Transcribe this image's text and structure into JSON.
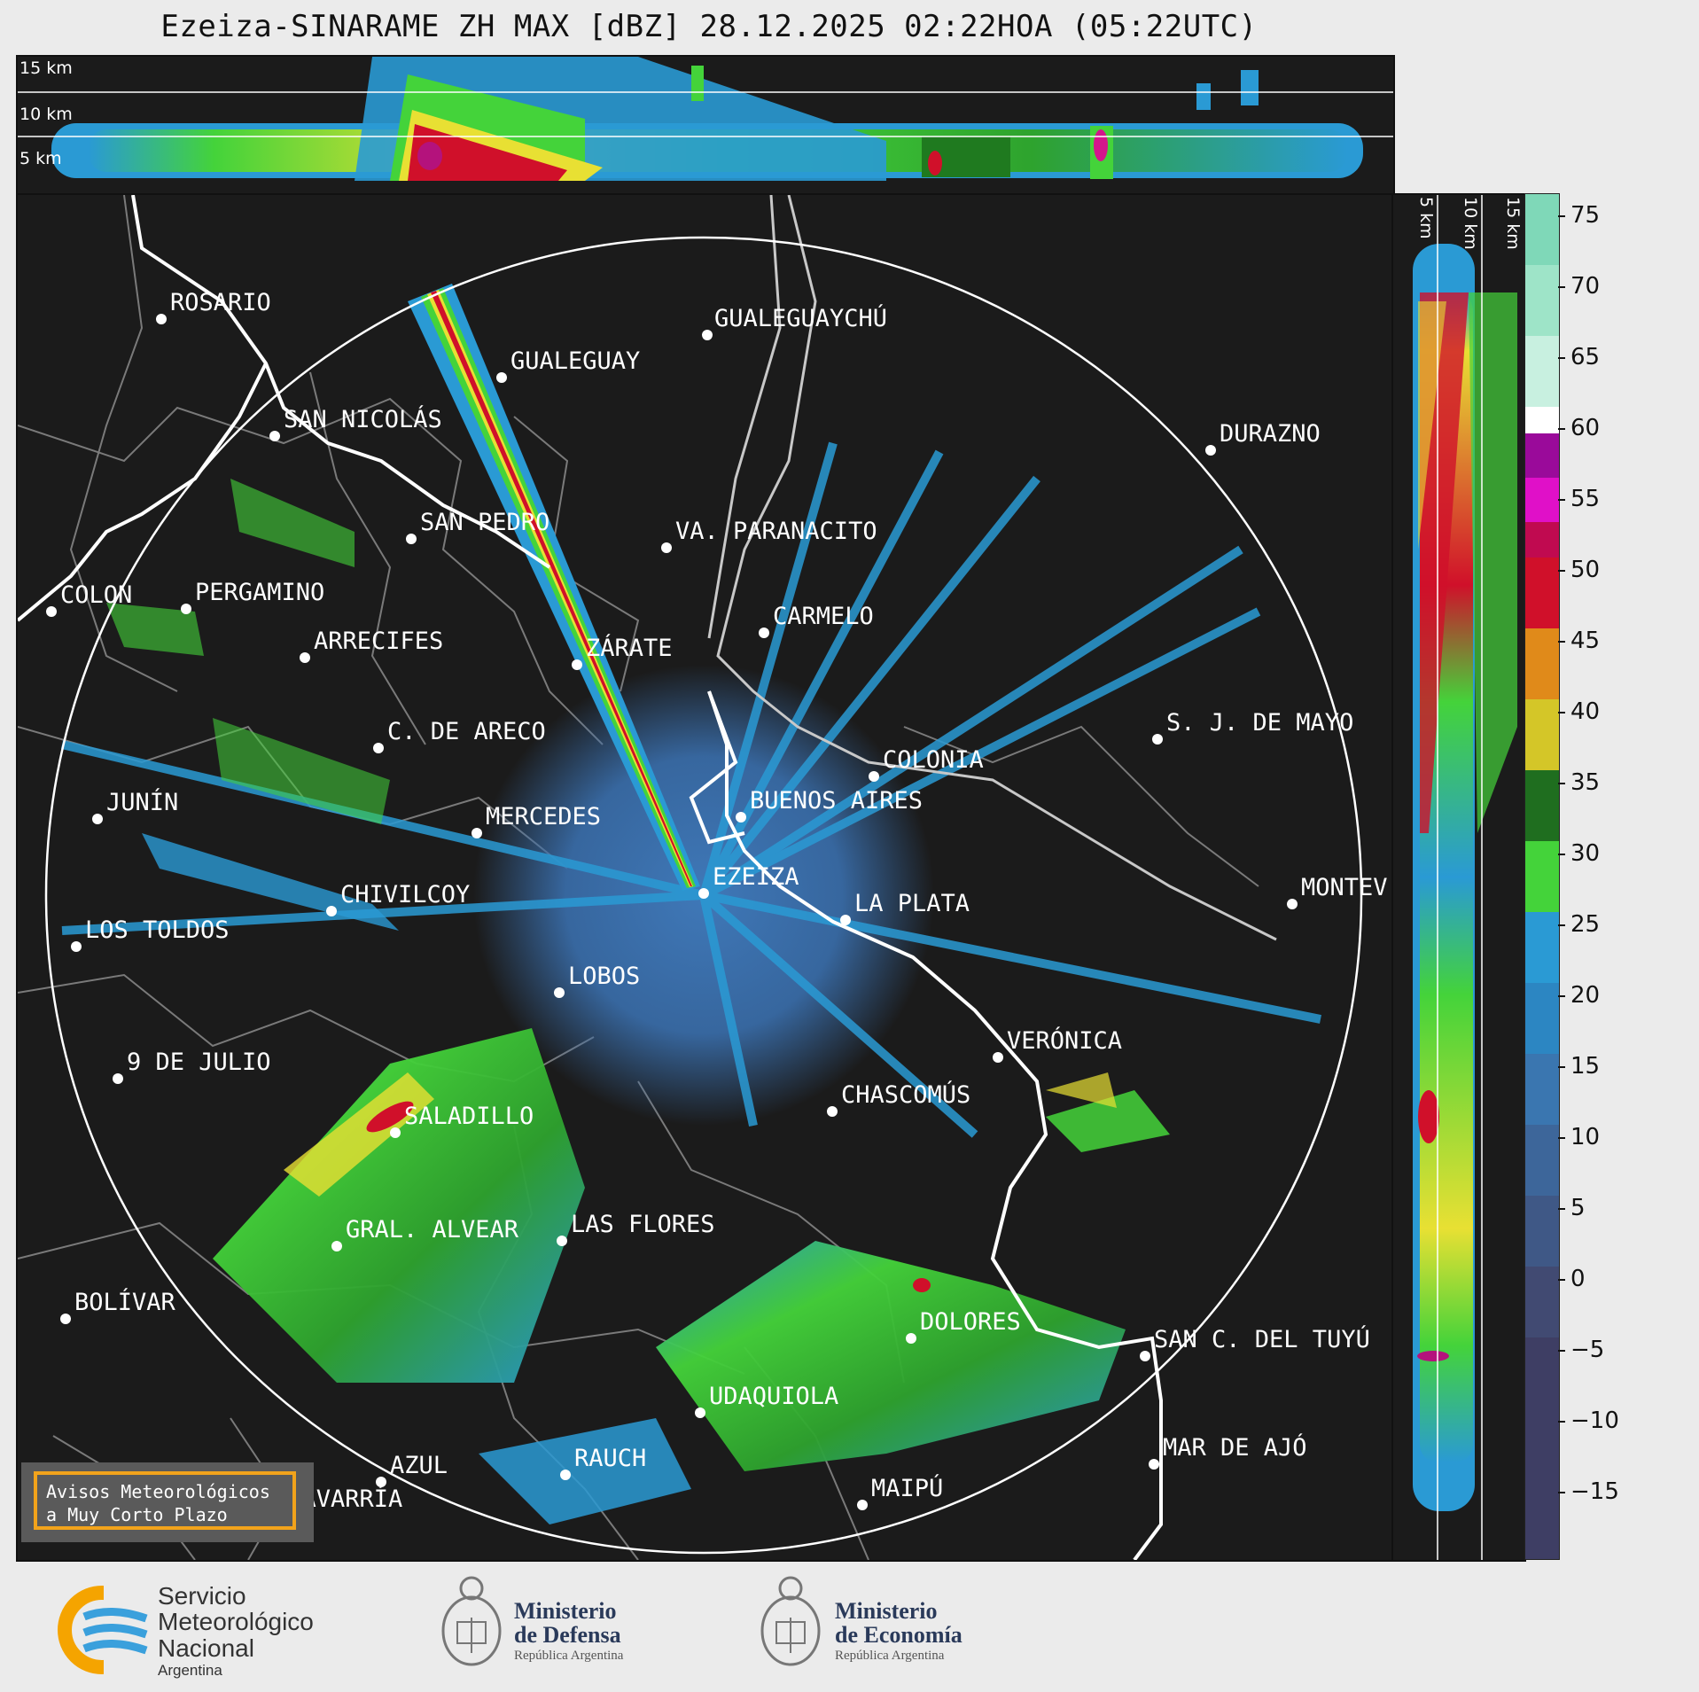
{
  "title": "Ezeiza-SINARAME ZH MAX [dBZ] 28.12.2025 02:22HOA (05:22UTC)",
  "top_panel": {
    "altitude_labels": [
      "15 km",
      "10 km",
      "5 km"
    ]
  },
  "right_panel": {
    "altitude_labels": [
      "5 km",
      "10 km",
      "15 km"
    ]
  },
  "colorbar": {
    "unit": "dBZ",
    "ticks": [
      "75",
      "70",
      "65",
      "60",
      "55",
      "50",
      "45",
      "40",
      "35",
      "30",
      "25",
      "20",
      "15",
      "10",
      "5",
      "0",
      "−5",
      "−10",
      "−15"
    ],
    "range": [
      -19,
      76
    ]
  },
  "map": {
    "center_label": "EZEIZA",
    "cities": [
      {
        "name": "ROSARIO"
      },
      {
        "name": "GUALEGUAYCHÚ"
      },
      {
        "name": "GUALEGUAY"
      },
      {
        "name": "SAN NICOLÁS"
      },
      {
        "name": "DURAZNO"
      },
      {
        "name": "SAN PEDRO"
      },
      {
        "name": "VA. PARANACITO"
      },
      {
        "name": "COLON"
      },
      {
        "name": "PERGAMINO"
      },
      {
        "name": "CARMELO"
      },
      {
        "name": "ARRECIFES"
      },
      {
        "name": "ZÁRATE"
      },
      {
        "name": "S. J. DE MAYO"
      },
      {
        "name": "C. DE ARECO"
      },
      {
        "name": "COLONIA"
      },
      {
        "name": "JUNÍN"
      },
      {
        "name": "BUENOS AIRES"
      },
      {
        "name": "MERCEDES"
      },
      {
        "name": "EZEIZA"
      },
      {
        "name": "MONTEV"
      },
      {
        "name": "CHIVILCOY"
      },
      {
        "name": "LA PLATA"
      },
      {
        "name": "LOS TOLDOS"
      },
      {
        "name": "LOBOS"
      },
      {
        "name": "VERÓNICA"
      },
      {
        "name": "9 DE JULIO"
      },
      {
        "name": "CHASCOMÚS"
      },
      {
        "name": "SALADILLO"
      },
      {
        "name": "GRAL. ALVEAR"
      },
      {
        "name": "LAS FLORES"
      },
      {
        "name": "BOLÍVAR"
      },
      {
        "name": "DOLORES"
      },
      {
        "name": "SAN C. DEL TUYÚ"
      },
      {
        "name": "UDAQUIOLA"
      },
      {
        "name": "MAR DE AJÓ"
      },
      {
        "name": "AZUL"
      },
      {
        "name": "RAUCH"
      },
      {
        "name": "OLAVARRÍA"
      },
      {
        "name": "MAIPÚ"
      }
    ]
  },
  "avisos": {
    "line1": "Avisos Meteorológicos",
    "line2": "a Muy Corto Plazo"
  },
  "footer": {
    "smn": {
      "line1": "Servicio",
      "line2": "Meteorológico",
      "line3": "Nacional",
      "country": "Argentina"
    },
    "defensa": {
      "line1": "Ministerio",
      "line2": "de Defensa",
      "sub": "República Argentina"
    },
    "economia": {
      "line1": "Ministerio",
      "line2": "de Economía",
      "sub": "República Argentina"
    }
  }
}
